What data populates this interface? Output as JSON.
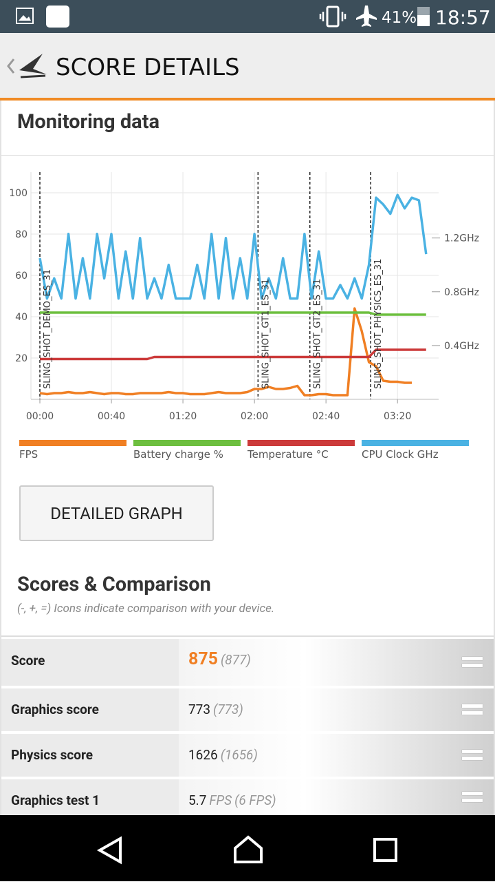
{
  "status_bar": {
    "battery": "41%",
    "time": "18:57"
  },
  "header": {
    "title": "SCORE DETAILS"
  },
  "monitoring": {
    "title": "Monitoring data"
  },
  "chart_data": {
    "type": "line",
    "x": [
      0,
      4,
      8,
      12,
      16,
      20,
      24,
      28,
      32,
      36,
      40,
      44,
      48,
      52,
      56,
      60,
      64,
      68,
      72,
      76,
      80,
      84,
      88,
      92,
      96,
      100,
      104,
      108,
      112,
      116,
      120,
      124,
      128,
      132,
      136,
      140,
      144,
      148,
      152,
      156,
      160,
      164,
      168,
      172,
      176,
      180,
      184,
      188,
      192,
      196,
      200,
      204,
      208,
      212,
      216
    ],
    "xlim": [
      -5,
      223
    ],
    "xticks": [
      {
        "value": 0,
        "label": "00:00"
      },
      {
        "value": 40,
        "label": "00:40"
      },
      {
        "value": 80,
        "label": "01:20"
      },
      {
        "value": 120,
        "label": "02:00"
      },
      {
        "value": 160,
        "label": "02:40"
      },
      {
        "value": 200,
        "label": "03:20"
      }
    ],
    "ylim": [
      0,
      110
    ],
    "yticks": [
      20,
      40,
      60,
      80,
      100
    ],
    "y2lim": [
      0,
      1.69
    ],
    "y2ticks": [
      {
        "value": 0.4,
        "label": "0.4GHz"
      },
      {
        "value": 0.8,
        "label": "0.8GHz"
      },
      {
        "value": 1.2,
        "label": "1.2GHz"
      }
    ],
    "grid": true,
    "annotations": [
      {
        "x": 0,
        "text": "SLING_SHOT_DEMO_ES_31"
      },
      {
        "x": 122,
        "text": "SLING_SHOT_GT1_ES_31"
      },
      {
        "x": 151,
        "text": "SLING_SHOT_GT2_ES_31"
      },
      {
        "x": 185,
        "text": "SLING_SHOT_PHYSICS_ES_31"
      }
    ],
    "series": [
      {
        "name": "FPS",
        "color": "#f07f23",
        "values": [
          3,
          2.5,
          3,
          3,
          3.5,
          3,
          3,
          3.5,
          3,
          2.5,
          3,
          3,
          2.5,
          2.5,
          3,
          3,
          3,
          3,
          3.5,
          3,
          3,
          2.5,
          2.5,
          2.5,
          3,
          3.5,
          3,
          3,
          3,
          3.5,
          5,
          5,
          6,
          5,
          5,
          5.5,
          6.5,
          2,
          2,
          2.5,
          2.5,
          2,
          2,
          2,
          44,
          33,
          18,
          16,
          9,
          8.5,
          8.5,
          8,
          8,
          null,
          null
        ]
      },
      {
        "name": "Battery charge %",
        "color": "#6dbf3f",
        "values": [
          42,
          42,
          42,
          42,
          42,
          42,
          42,
          42,
          42,
          42,
          42,
          42,
          42,
          42,
          42,
          42,
          42,
          42,
          42,
          42,
          42,
          42,
          42,
          42,
          42,
          42,
          42,
          42,
          42,
          42,
          42,
          42,
          42,
          42,
          42,
          42,
          42,
          42,
          42,
          42,
          42,
          42,
          42,
          42,
          42,
          42,
          42,
          41,
          41,
          41,
          41,
          41,
          41,
          41,
          41
        ]
      },
      {
        "name": "Temperature °C",
        "color": "#cc3a3a",
        "values": [
          19.5,
          19.5,
          19.5,
          19.5,
          19.5,
          19.5,
          19.5,
          19.5,
          19.5,
          19.5,
          19.5,
          19.5,
          19.5,
          19.5,
          19.5,
          19.5,
          20.5,
          20.5,
          20.5,
          20.5,
          20.5,
          20.5,
          20.5,
          20.5,
          20.5,
          20.5,
          20.5,
          20.5,
          20.5,
          20.5,
          20.5,
          20.5,
          20.5,
          20.5,
          20.5,
          20.5,
          20.5,
          20.5,
          20.5,
          20.5,
          20.5,
          20.5,
          20.5,
          20.5,
          20.5,
          20.5,
          20.5,
          24,
          24,
          24,
          24,
          24,
          24,
          24,
          24
        ]
      },
      {
        "name": "CPU Clock GHz",
        "color": "#4ab2e3",
        "axis": "y2",
        "values": [
          1.05,
          0.75,
          0.9,
          0.75,
          1.23,
          0.75,
          1.05,
          0.75,
          1.23,
          0.9,
          1.23,
          0.75,
          1.1,
          0.75,
          1.2,
          0.75,
          0.9,
          0.75,
          1.0,
          0.75,
          0.75,
          0.75,
          1.0,
          0.75,
          1.23,
          0.75,
          1.2,
          0.75,
          1.05,
          0.75,
          1.23,
          0.75,
          0.9,
          0.75,
          1.05,
          0.75,
          0.75,
          1.23,
          0.75,
          1.1,
          0.75,
          0.75,
          0.85,
          0.75,
          0.9,
          0.75,
          1.0,
          1.5,
          1.45,
          1.38,
          1.52,
          1.42,
          1.5,
          1.48,
          1.08
        ]
      }
    ]
  },
  "button": "DETAILED GRAPH",
  "scores": {
    "title": "Scores & Comparison",
    "subtitle": "(-, +, =) Icons indicate comparison with your device.",
    "rows": [
      {
        "label": "Score",
        "value": "875",
        "reference": "(877)"
      },
      {
        "label": "Graphics score",
        "value": "773",
        "reference": "(773)"
      },
      {
        "label": "Physics score",
        "value": "1626",
        "reference": "(1656)"
      },
      {
        "label": "Graphics test 1",
        "value": "5.7",
        "unit": "FPS",
        "reference": "(6 FPS)"
      }
    ]
  }
}
